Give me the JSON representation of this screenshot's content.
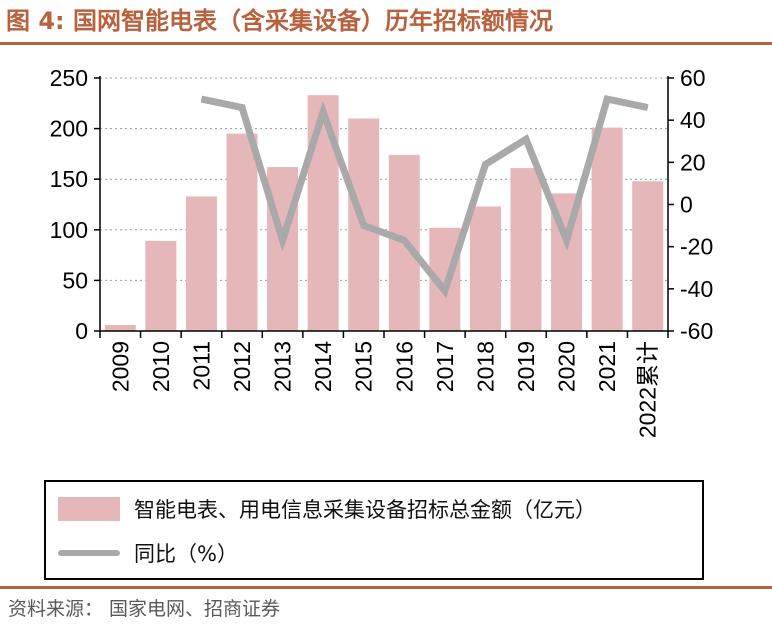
{
  "title": "图 4:  国网智能电表（含采集设备）历年招标额情况",
  "source": "资料来源：  国家电网、招商证券",
  "colors": {
    "accent": "#b8613d",
    "bar": "#e6b7b9",
    "line": "#a9a9a9"
  },
  "chart_data": {
    "type": "bar",
    "categories": [
      "2009",
      "2010",
      "2011",
      "2012",
      "2013",
      "2014",
      "2015",
      "2016",
      "2017",
      "2018",
      "2019",
      "2020",
      "2021",
      "2022累计"
    ],
    "series": [
      {
        "name": "智能电表、用电信息采集设备招标总金额（亿元）",
        "type": "bar",
        "axis": "left",
        "values": [
          6,
          89,
          133,
          195,
          162,
          233,
          210,
          174,
          102,
          123,
          161,
          136,
          201,
          148
        ]
      },
      {
        "name": "同比（%）",
        "type": "line",
        "axis": "right",
        "values": [
          null,
          null,
          50,
          46,
          -17,
          44,
          -10,
          -17,
          -41,
          19,
          31,
          -17,
          50,
          46
        ]
      }
    ],
    "y_left": {
      "lim": [
        0,
        250
      ],
      "ticks": [
        "0",
        "50",
        "100",
        "150",
        "200",
        "250"
      ]
    },
    "y_right": {
      "lim": [
        -60,
        60
      ],
      "ticks": [
        "-60",
        "-40",
        "-20",
        "0",
        "20",
        "40",
        "60"
      ]
    },
    "grid": true,
    "legend_position": "bottom"
  }
}
